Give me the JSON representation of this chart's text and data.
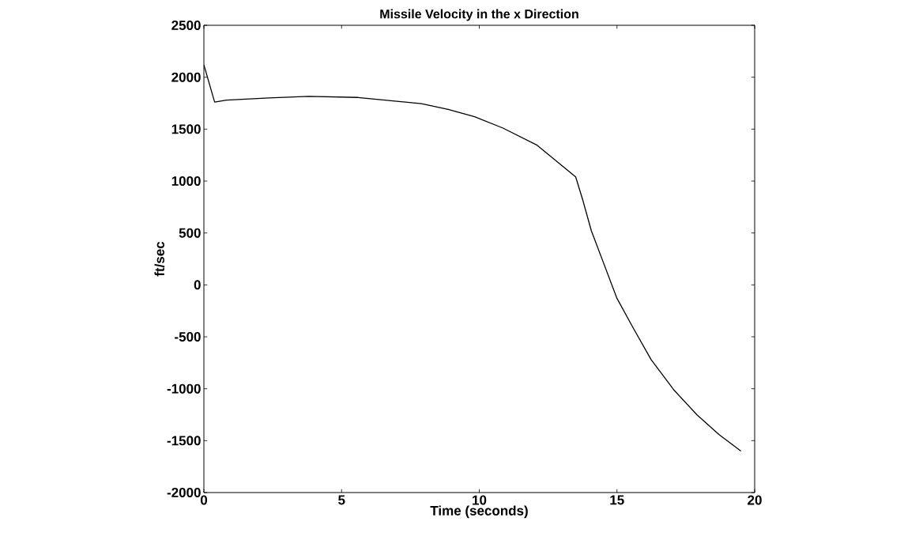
{
  "chart_data": {
    "type": "line",
    "title": "Missile Velocity in the x Direction",
    "xlabel": "Time (seconds)",
    "ylabel": "ft/sec",
    "x": [
      0,
      0.39,
      0.82,
      2.36,
      3.8,
      5.6,
      6.57,
      7.9,
      8.87,
      9.83,
      10.86,
      12.1,
      13.5,
      13.76,
      14.07,
      15.0,
      15.6,
      16.24,
      17.06,
      17.9,
      18.7,
      19.5
    ],
    "series": [
      {
        "color": "#000000",
        "values": [
          2120,
          1760,
          1780,
          1800,
          1815,
          1805,
          1780,
          1745,
          1690,
          1620,
          1510,
          1345,
          1040,
          815,
          520,
          -130,
          -420,
          -720,
          -1010,
          -1250,
          -1440,
          -1600
        ]
      }
    ],
    "xlim": [
      0,
      20
    ],
    "ylim": [
      -2000,
      2500
    ],
    "xticks": [
      0,
      5,
      10,
      15,
      20
    ],
    "yticks": [
      -2000,
      -1500,
      -1000,
      -500,
      0,
      500,
      1000,
      1500,
      2000,
      2500
    ],
    "marker": "none",
    "line_style": "solid"
  }
}
